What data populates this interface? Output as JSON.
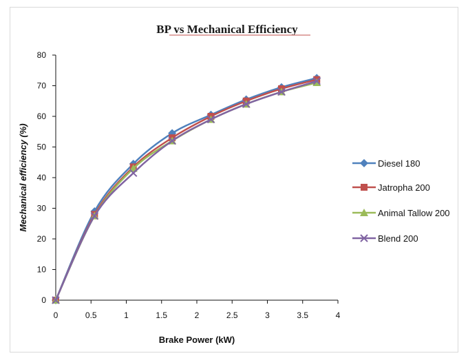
{
  "chart_data": {
    "type": "line",
    "title": "BP vs Mechanical Efficiency",
    "xlabel": "Brake Power (kW)",
    "ylabel": "Mechanical efficiency (%)",
    "xlim": [
      0,
      4
    ],
    "ylim": [
      0,
      80
    ],
    "x_ticks": [
      "0",
      "0.5",
      "1",
      "1.5",
      "2",
      "2.5",
      "3",
      "3.5",
      "4"
    ],
    "y_ticks": [
      "0",
      "10",
      "20",
      "30",
      "40",
      "50",
      "60",
      "70",
      "80"
    ],
    "grid": false,
    "legend_position": "right",
    "x": [
      0,
      0.55,
      1.1,
      1.65,
      2.2,
      2.7,
      3.2,
      3.7
    ],
    "series": [
      {
        "name": "Diesel 180",
        "color": "#4f81bd",
        "marker": "diamond",
        "values": [
          0,
          29,
          44.5,
          54.5,
          60.5,
          65.5,
          69.5,
          72.5
        ]
      },
      {
        "name": "Jatropha 200",
        "color": "#c0504d",
        "marker": "square",
        "values": [
          0,
          28,
          43.5,
          53,
          60,
          65,
          69,
          72
        ]
      },
      {
        "name": "Animal Tallow 200",
        "color": "#9bbb59",
        "marker": "triangle",
        "values": [
          0,
          27.5,
          43,
          52,
          59,
          64,
          68,
          71
        ]
      },
      {
        "name": "Blend 200",
        "color": "#8064a2",
        "marker": "x",
        "values": [
          0,
          27.5,
          41.5,
          52,
          59,
          64,
          68,
          71.5
        ]
      }
    ]
  }
}
